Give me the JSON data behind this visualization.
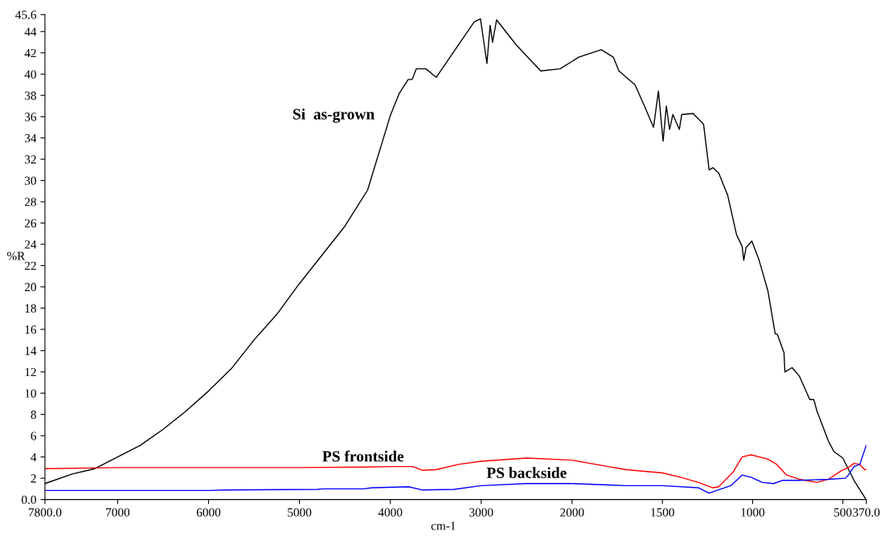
{
  "chart_data": [
    {
      "type": "line",
      "ylabel": "%R",
      "xlabel": "cm-1",
      "xlim": [
        7800,
        2000
      ],
      "ylim": [
        0,
        45.6
      ],
      "xticks": [
        {
          "value": 7800,
          "label": "7800.0"
        },
        7000,
        6000,
        5000,
        4000,
        3000,
        2000
      ],
      "yticks": [
        {
          "value": 0,
          "label": "0.0"
        },
        2,
        4,
        6,
        8,
        10,
        12,
        14,
        16,
        18,
        20,
        22,
        24,
        26,
        28,
        30,
        32,
        34,
        36,
        38,
        40,
        42,
        44,
        45.6
      ],
      "grid": false,
      "marker": "none",
      "line_style": "solid",
      "series": [
        {
          "name": "Si  as-grown",
          "color": "#000000",
          "x": [
            7800,
            7500,
            7250,
            7000,
            6750,
            6500,
            6250,
            6000,
            5750,
            5500,
            5250,
            5000,
            4750,
            4500,
            4250,
            4000,
            3901,
            3803,
            3759,
            3715,
            3609,
            3494,
            3078,
            3008,
            2937,
            2902,
            2875,
            2831,
            2610,
            2345,
            2132,
            2000
          ],
          "values": [
            1.5,
            2.4,
            2.9,
            4.0,
            5.1,
            6.6,
            8.3,
            10.2,
            12.3,
            15.0,
            17.4,
            20.3,
            23.0,
            25.7,
            29.1,
            36.1,
            38.2,
            39.5,
            39.5,
            40.5,
            40.5,
            39.7,
            44.9,
            45.2,
            41.0,
            44.6,
            43.0,
            45.1,
            42.7,
            40.3,
            40.5,
            41.2
          ]
        },
        {
          "name": "PS frontside",
          "color": "#ff0000",
          "x": [
            7800,
            7000,
            6000,
            5000,
            4300,
            4000,
            3750,
            3650,
            3500,
            3250,
            3000,
            2500,
            2000
          ],
          "values": [
            2.9,
            3.0,
            3.0,
            3.0,
            3.05,
            3.1,
            3.1,
            2.75,
            2.8,
            3.3,
            3.6,
            3.9,
            3.7
          ]
        },
        {
          "name": "PS backside",
          "color": "#0000ff",
          "x": [
            7800,
            7000,
            6000,
            5800,
            4800,
            4750,
            4300,
            4200,
            3800,
            3650,
            3300,
            3000,
            2500,
            2000
          ],
          "values": [
            0.85,
            0.85,
            0.85,
            0.9,
            0.95,
            1.0,
            1.0,
            1.1,
            1.2,
            0.9,
            0.95,
            1.3,
            1.5,
            1.5
          ]
        }
      ]
    },
    {
      "type": "line",
      "xlim": [
        2000,
        370
      ],
      "ylim": [
        0,
        45.6
      ],
      "xticks": [
        1500,
        1000,
        500,
        {
          "value": 370,
          "label": "370.0"
        }
      ],
      "tick_labels": "x",
      "grid": false,
      "marker": "none",
      "line_style": "solid",
      "series": [
        {
          "color": "#000000",
          "x": [
            2000,
            1964,
            1839,
            1772,
            1741,
            1652,
            1607,
            1549,
            1522,
            1496,
            1478,
            1460,
            1442,
            1406,
            1393,
            1330,
            1272,
            1241,
            1219,
            1188,
            1138,
            1089,
            1058,
            1049,
            1036,
            1004,
            964,
            915,
            875,
            862,
            826,
            821,
            781,
            741,
            683,
            661,
            643,
            580,
            549,
            500,
            438,
            375
          ],
          "values": [
            41.2,
            41.6,
            42.3,
            41.6,
            40.3,
            39.0,
            37.3,
            35.0,
            38.4,
            33.7,
            37.0,
            34.8,
            36.2,
            34.8,
            36.2,
            36.3,
            35.3,
            31.0,
            31.2,
            30.7,
            28.6,
            24.9,
            23.8,
            22.5,
            23.7,
            24.3,
            22.5,
            19.6,
            15.6,
            15.5,
            13.8,
            12.0,
            12.4,
            11.6,
            9.4,
            9.4,
            8.3,
            5.5,
            4.5,
            3.9,
            1.8,
            0.1
          ]
        },
        {
          "color": "#ff0000",
          "x": [
            2000,
            1700,
            1500,
            1400,
            1300,
            1219,
            1188,
            1107,
            1058,
            1009,
            915,
            866,
            812,
            741,
            643,
            580,
            509,
            469,
            438,
            406,
            379,
            370
          ],
          "values": [
            3.7,
            2.8,
            2.5,
            2.1,
            1.6,
            1.1,
            1.2,
            2.6,
            4.0,
            4.2,
            3.8,
            3.3,
            2.3,
            1.9,
            1.6,
            1.9,
            2.7,
            3.0,
            3.4,
            3.3,
            2.8,
            2.8
          ]
        },
        {
          "color": "#0000ff",
          "x": [
            2000,
            1700,
            1500,
            1300,
            1241,
            1121,
            1058,
            1009,
            946,
            884,
            835,
            741,
            580,
            486,
            469,
            438,
            406,
            370
          ],
          "values": [
            1.5,
            1.3,
            1.3,
            1.1,
            0.6,
            1.3,
            2.3,
            2.1,
            1.6,
            1.5,
            1.8,
            1.8,
            1.9,
            2.0,
            2.3,
            3.1,
            3.3,
            5.1
          ]
        }
      ]
    }
  ]
}
